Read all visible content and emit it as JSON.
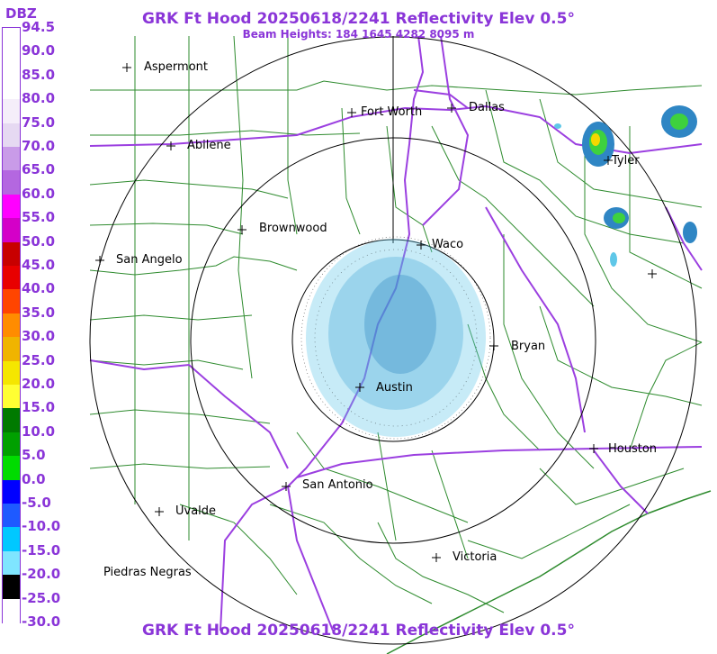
{
  "title": "GRK Ft Hood 20250618/2241 Reflectivity Elev 0.5°",
  "subtitle": "Beam Heights: 184 1645 4282 8095 m",
  "legend": {
    "unit": "DBZ",
    "ticks": [
      "94.5",
      "90.0",
      "85.0",
      "80.0",
      "75.0",
      "70.0",
      "65.0",
      "60.0",
      "55.0",
      "50.0",
      "45.0",
      "40.0",
      "35.0",
      "30.0",
      "25.0",
      "20.0",
      "15.0",
      "10.0",
      "5.0",
      "0.0",
      "-5.0",
      "-10.0",
      "-15.0",
      "-20.0",
      "-25.0",
      "-30.0"
    ],
    "colors": [
      "#ffffff",
      "#ffffff",
      "#ffffff",
      "#f5eefa",
      "#e6d9f2",
      "#c99be8",
      "#b467e0",
      "#ff00ff",
      "#d400c8",
      "#c80000",
      "#e80000",
      "#ff4500",
      "#ff8c00",
      "#f0b400",
      "#f5e600",
      "#ffff33",
      "#007a00",
      "#00a000",
      "#00dc00",
      "#0000ff",
      "#1e5aff",
      "#00c8ff",
      "#7fe5ff",
      "#000000",
      "#ffffff",
      "#ffffff"
    ]
  },
  "cities": [
    {
      "name": "Aspermont"
    },
    {
      "name": "Fort Worth"
    },
    {
      "name": "Dallas"
    },
    {
      "name": "Abilene"
    },
    {
      "name": "Tyler"
    },
    {
      "name": "Brownwood"
    },
    {
      "name": "Waco"
    },
    {
      "name": "San Angelo"
    },
    {
      "name": "Bryan"
    },
    {
      "name": "Austin"
    },
    {
      "name": "Houston"
    },
    {
      "name": "San Antonio"
    },
    {
      "name": "Uvalde"
    },
    {
      "name": "Victoria"
    },
    {
      "name": "Piedras Negras"
    }
  ],
  "colors": {
    "title": "#8a35d8",
    "counties": "#2e8b2e",
    "highways": "#9b3fe0",
    "range_rings": "#000000"
  }
}
